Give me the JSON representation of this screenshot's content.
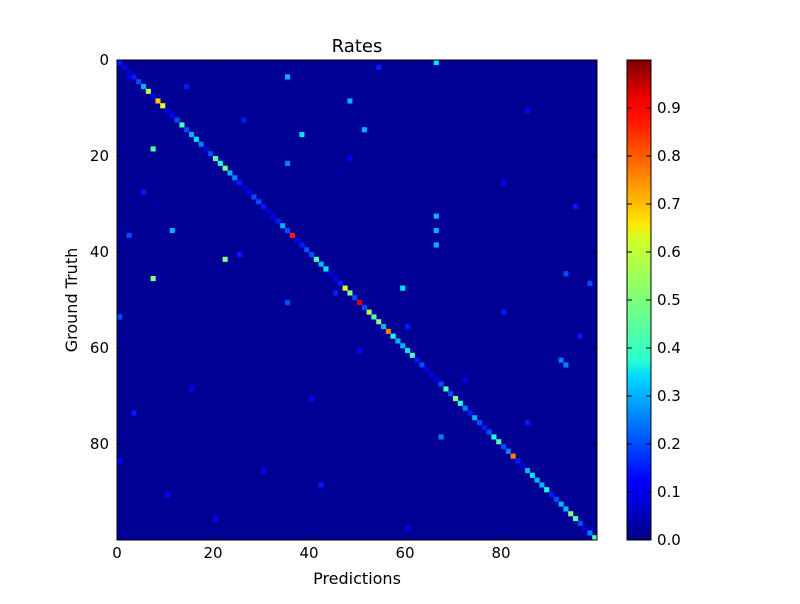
{
  "chart_data": {
    "type": "heatmap",
    "title": "Rates",
    "xlabel": "Predictions",
    "ylabel": "Ground Truth",
    "rows": 100,
    "cols": 100,
    "xlim": [
      0,
      100
    ],
    "ylim": [
      100,
      0
    ],
    "x_ticks": [
      0,
      20,
      40,
      60,
      80
    ],
    "y_ticks": [
      0,
      20,
      40,
      60,
      80
    ],
    "colorbar": {
      "min": 0.0,
      "max": 1.0,
      "ticks": [
        0.0,
        0.1,
        0.2,
        0.3,
        0.4,
        0.5,
        0.6,
        0.7,
        0.8,
        0.9
      ],
      "tick_labels": [
        "0.0",
        "0.1",
        "0.2",
        "0.3",
        "0.4",
        "0.5",
        "0.6",
        "0.7",
        "0.8",
        "0.9"
      ],
      "colormap": "jet"
    },
    "background_value": 0.02,
    "diagonal": [
      [
        0,
        0.15
      ],
      [
        1,
        0.1
      ],
      [
        2,
        0.08
      ],
      [
        3,
        0.15
      ],
      [
        4,
        0.2
      ],
      [
        5,
        0.3
      ],
      [
        6,
        0.55
      ],
      [
        7,
        0.12
      ],
      [
        8,
        0.68
      ],
      [
        9,
        0.6
      ],
      [
        10,
        0.1
      ],
      [
        11,
        0.12
      ],
      [
        12,
        0.2
      ],
      [
        13,
        0.45
      ],
      [
        14,
        0.2
      ],
      [
        15,
        0.3
      ],
      [
        16,
        0.35
      ],
      [
        17,
        0.25
      ],
      [
        18,
        0.1
      ],
      [
        19,
        0.2
      ],
      [
        20,
        0.45
      ],
      [
        21,
        0.4
      ],
      [
        22,
        0.5
      ],
      [
        23,
        0.3
      ],
      [
        24,
        0.25
      ],
      [
        25,
        0.15
      ],
      [
        26,
        0.1
      ],
      [
        27,
        0.12
      ],
      [
        28,
        0.2
      ],
      [
        29,
        0.2
      ],
      [
        30,
        0.15
      ],
      [
        31,
        0.1
      ],
      [
        32,
        0.1
      ],
      [
        33,
        0.15
      ],
      [
        34,
        0.3
      ],
      [
        35,
        0.2
      ],
      [
        36,
        0.85
      ],
      [
        37,
        0.1
      ],
      [
        38,
        0.15
      ],
      [
        39,
        0.2
      ],
      [
        40,
        0.2
      ],
      [
        41,
        0.45
      ],
      [
        42,
        0.3
      ],
      [
        43,
        0.35
      ],
      [
        44,
        0.1
      ],
      [
        45,
        0.1
      ],
      [
        46,
        0.15
      ],
      [
        47,
        0.6
      ],
      [
        48,
        0.5
      ],
      [
        49,
        0.2
      ],
      [
        50,
        0.9
      ],
      [
        51,
        0.2
      ],
      [
        52,
        0.55
      ],
      [
        53,
        0.45
      ],
      [
        54,
        0.5
      ],
      [
        55,
        0.3
      ],
      [
        56,
        0.75
      ],
      [
        57,
        0.4
      ],
      [
        58,
        0.3
      ],
      [
        59,
        0.3
      ],
      [
        60,
        0.35
      ],
      [
        61,
        0.45
      ],
      [
        62,
        0.15
      ],
      [
        63,
        0.2
      ],
      [
        64,
        0.1
      ],
      [
        65,
        0.1
      ],
      [
        66,
        0.1
      ],
      [
        67,
        0.2
      ],
      [
        68,
        0.45
      ],
      [
        69,
        0.2
      ],
      [
        70,
        0.5
      ],
      [
        71,
        0.4
      ],
      [
        72,
        0.25
      ],
      [
        73,
        0.15
      ],
      [
        74,
        0.3
      ],
      [
        75,
        0.2
      ],
      [
        76,
        0.15
      ],
      [
        77,
        0.2
      ],
      [
        78,
        0.4
      ],
      [
        79,
        0.45
      ],
      [
        80,
        0.2
      ],
      [
        81,
        0.25
      ],
      [
        82,
        0.75
      ],
      [
        83,
        0.15
      ],
      [
        84,
        0.1
      ],
      [
        85,
        0.3
      ],
      [
        86,
        0.35
      ],
      [
        87,
        0.3
      ],
      [
        88,
        0.3
      ],
      [
        89,
        0.4
      ],
      [
        90,
        0.15
      ],
      [
        91,
        0.2
      ],
      [
        92,
        0.3
      ],
      [
        93,
        0.3
      ],
      [
        94,
        0.5
      ],
      [
        95,
        0.45
      ],
      [
        96,
        0.2
      ],
      [
        97,
        0.1
      ],
      [
        98,
        0.25
      ],
      [
        99,
        0.45
      ]
    ],
    "off_diagonal": [
      [
        0,
        66,
        0.35
      ],
      [
        3,
        35,
        0.3
      ],
      [
        15,
        38,
        0.35
      ],
      [
        8,
        48,
        0.3
      ],
      [
        14,
        51,
        0.3
      ],
      [
        18,
        7,
        0.45
      ],
      [
        21,
        35,
        0.25
      ],
      [
        35,
        11,
        0.3
      ],
      [
        41,
        22,
        0.5
      ],
      [
        45,
        7,
        0.5
      ],
      [
        47,
        59,
        0.35
      ],
      [
        50,
        35,
        0.2
      ],
      [
        32,
        66,
        0.3
      ],
      [
        35,
        66,
        0.3
      ],
      [
        38,
        66,
        0.3
      ],
      [
        62,
        92,
        0.25
      ],
      [
        63,
        93,
        0.25
      ],
      [
        78,
        67,
        0.25
      ],
      [
        44,
        93,
        0.2
      ],
      [
        46,
        98,
        0.2
      ],
      [
        36,
        2,
        0.2
      ],
      [
        5,
        14,
        0.15
      ],
      [
        12,
        26,
        0.15
      ],
      [
        27,
        5,
        0.15
      ],
      [
        40,
        25,
        0.15
      ],
      [
        55,
        60,
        0.15
      ],
      [
        70,
        40,
        0.12
      ],
      [
        85,
        30,
        0.12
      ],
      [
        90,
        10,
        0.12
      ],
      [
        75,
        85,
        0.15
      ],
      [
        53,
        0,
        0.2
      ],
      [
        57,
        96,
        0.15
      ],
      [
        88,
        42,
        0.15
      ],
      [
        68,
        15,
        0.12
      ],
      [
        25,
        80,
        0.12
      ],
      [
        10,
        85,
        0.12
      ],
      [
        30,
        95,
        0.15
      ],
      [
        60,
        50,
        0.12
      ],
      [
        83,
        0,
        0.12
      ],
      [
        95,
        20,
        0.12
      ],
      [
        97,
        60,
        0.12
      ],
      [
        52,
        80,
        0.15
      ],
      [
        20,
        48,
        0.12
      ],
      [
        66,
        72,
        0.12
      ],
      [
        73,
        3,
        0.15
      ],
      [
        1,
        54,
        0.15
      ],
      [
        3,
        2,
        0.1
      ],
      [
        48,
        45,
        0.15
      ]
    ]
  }
}
